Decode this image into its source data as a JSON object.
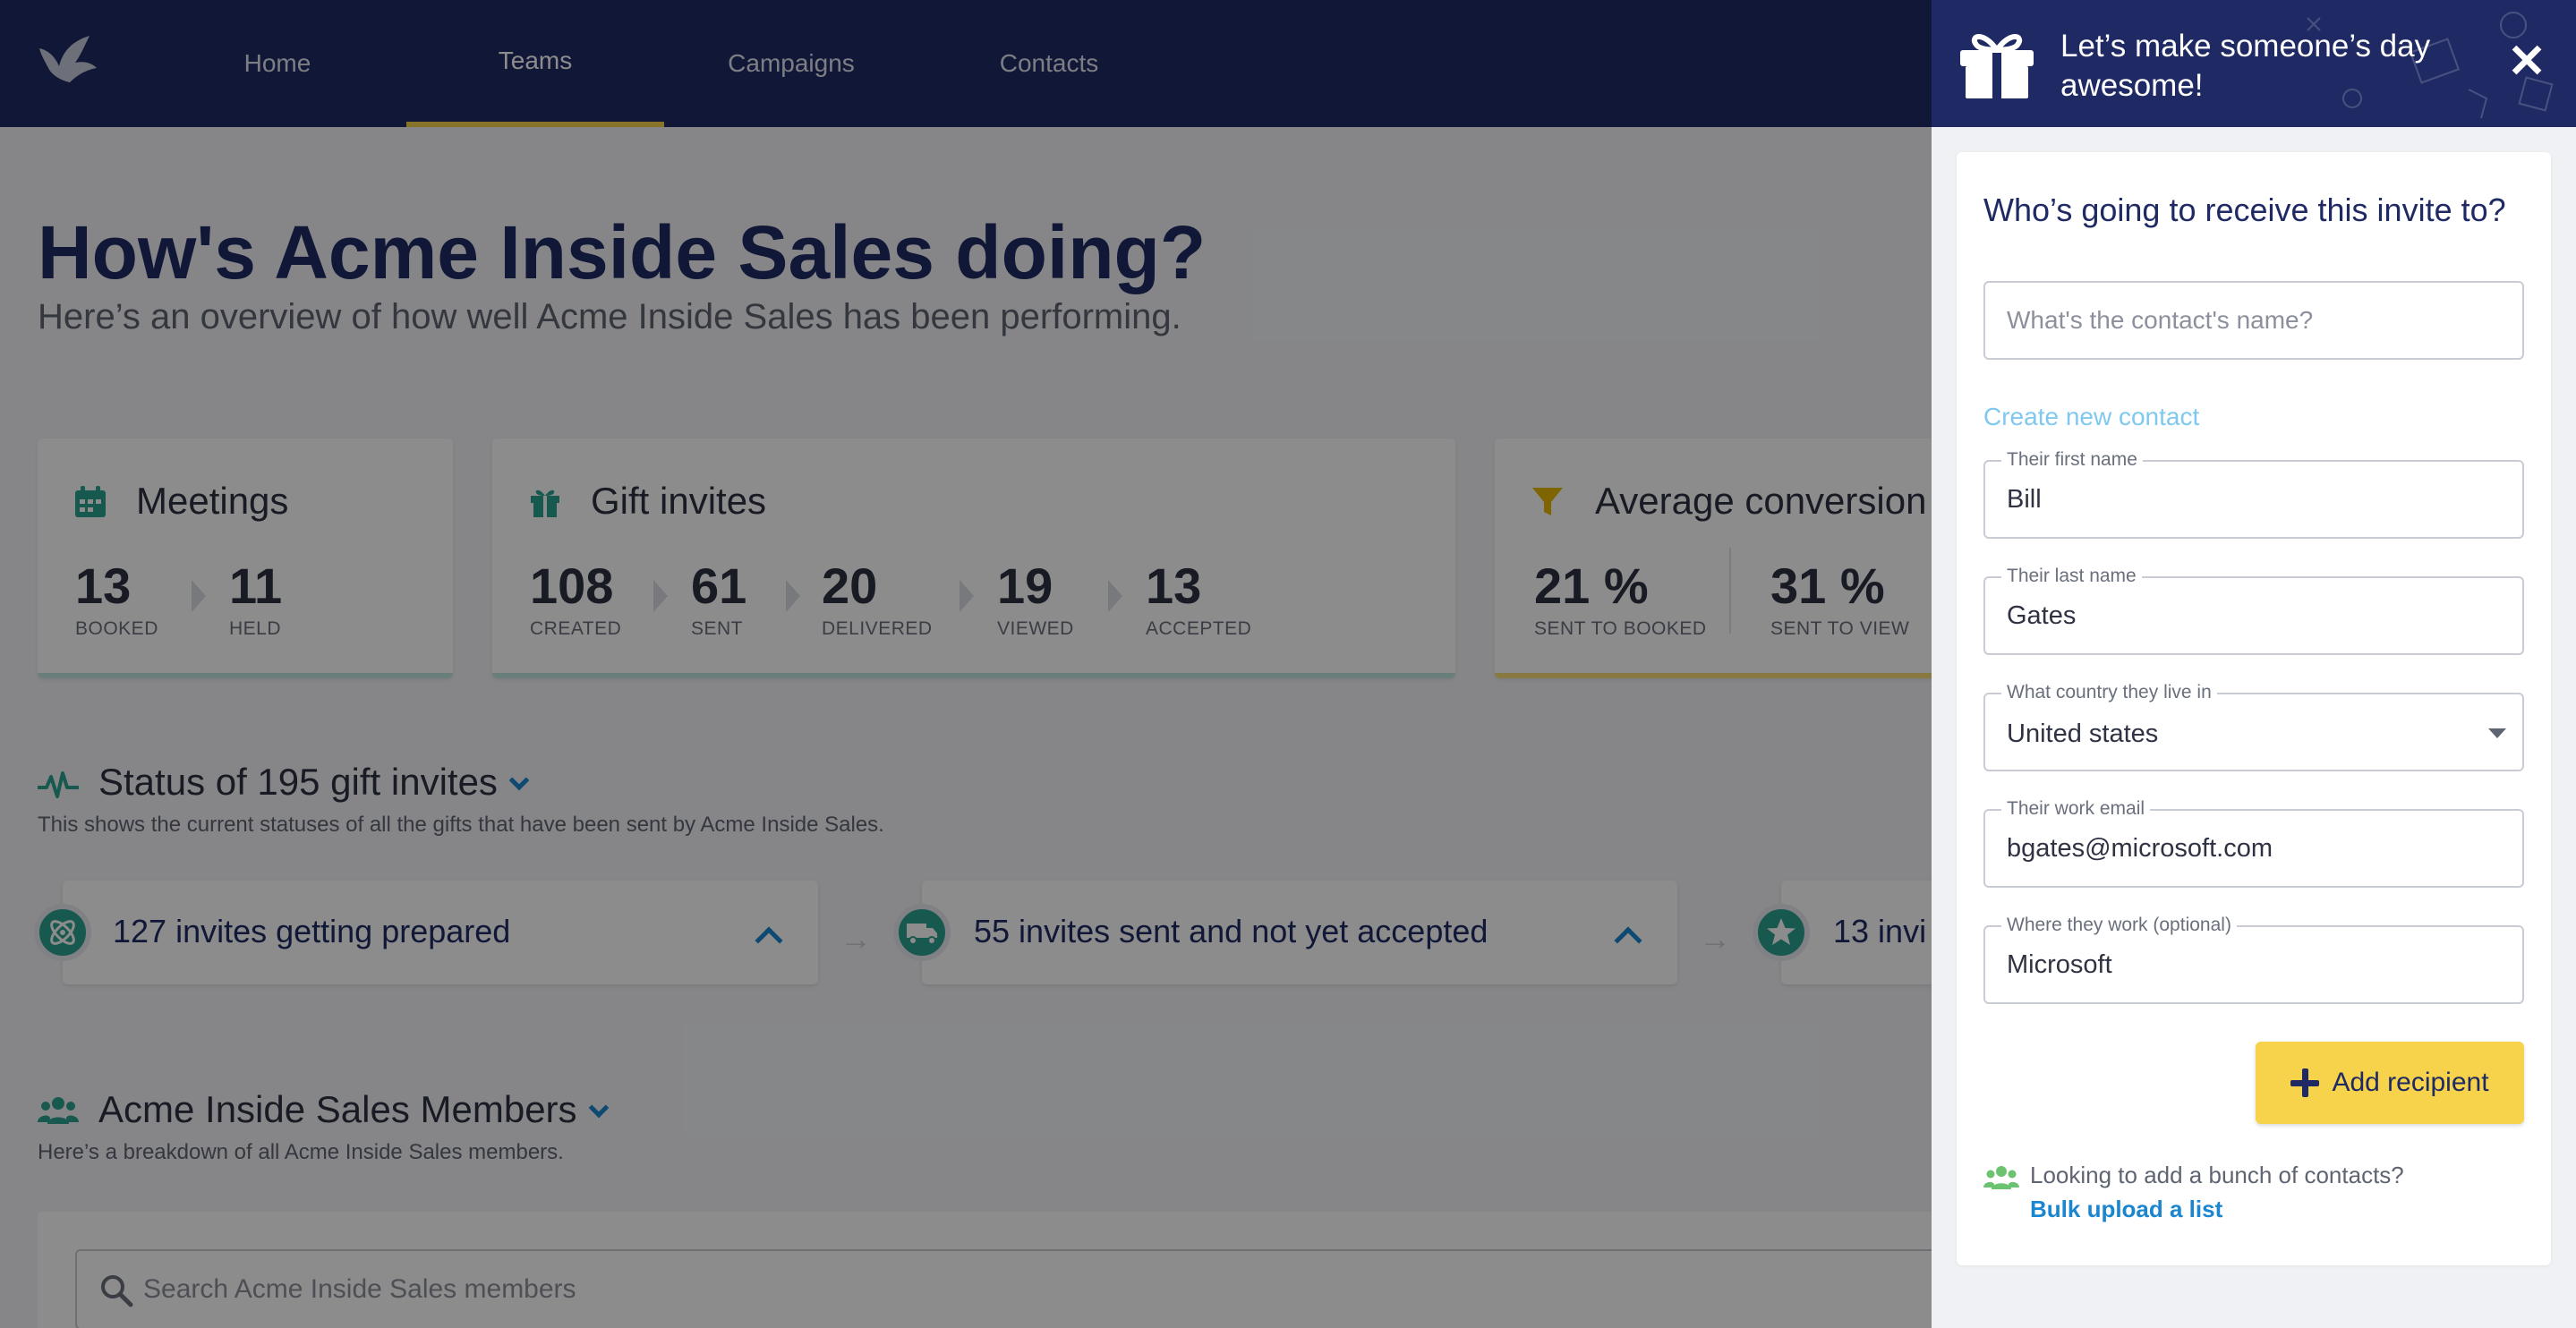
{
  "nav": {
    "items": [
      {
        "label": "Home"
      },
      {
        "label": "Teams",
        "active": true
      },
      {
        "label": "Campaigns"
      },
      {
        "label": "Contacts"
      }
    ]
  },
  "page": {
    "title": "How's Acme Inside Sales doing?",
    "subtitle": "Here’s an overview of how well Acme Inside Sales has been performing."
  },
  "cards": {
    "meetings": {
      "title": "Meetings",
      "icon": "calendar-icon",
      "stats": [
        {
          "value": "13",
          "label": "BOOKED"
        },
        {
          "value": "11",
          "label": "HELD"
        }
      ]
    },
    "gifts": {
      "title": "Gift invites",
      "icon": "gift-icon",
      "stats": [
        {
          "value": "108",
          "label": "CREATED"
        },
        {
          "value": "61",
          "label": "SENT"
        },
        {
          "value": "20",
          "label": "DELIVERED"
        },
        {
          "value": "19",
          "label": "VIEWED"
        },
        {
          "value": "13",
          "label": "ACCEPTED"
        }
      ]
    },
    "conversion": {
      "title": "Average conversion",
      "icon": "funnel-icon",
      "stats": [
        {
          "value": "21 %",
          "label": "SENT TO BOOKED"
        },
        {
          "value": "31 %",
          "label": "SENT TO VIEW"
        }
      ]
    }
  },
  "status": {
    "title": "Status of 195 gift invites",
    "description": "This shows the current statuses of all the gifts that have been sent by Acme Inside Sales.",
    "items": [
      {
        "label": "127 invites getting prepared",
        "icon": "atom-icon"
      },
      {
        "label": "55 invites sent and not yet accepted",
        "icon": "truck-icon"
      },
      {
        "label": "13 invi",
        "icon": "star-icon"
      }
    ]
  },
  "members": {
    "title": "Acme Inside Sales Members",
    "description": "Here’s a breakdown of all Acme Inside Sales members.",
    "search_placeholder": "Search Acme Inside Sales members"
  },
  "drawer": {
    "title": "Let’s make someone’s day awesome!",
    "close": "✕",
    "heading": "Who’s going to receive this invite to?",
    "contact_placeholder": "What's the contact's name?",
    "create_link": "Create new contact",
    "fields": {
      "first_name": {
        "label": "Their first name",
        "value": "Bill"
      },
      "last_name": {
        "label": "Their last name",
        "value": "Gates"
      },
      "country": {
        "label": "What country they live in",
        "value": "United states"
      },
      "email": {
        "label": "Their work email",
        "value": "bgates@microsoft.com"
      },
      "company": {
        "label": "Where they work (optional)",
        "value": "Microsoft"
      }
    },
    "add_button": "Add recipient",
    "bulk_text": "Looking to add a bunch of contacts?",
    "bulk_link": "Bulk upload a list"
  },
  "colors": {
    "navy": "#1f2a64",
    "yellow": "#f6d34a",
    "teal": "#2ba391",
    "link_blue": "#1a86d0",
    "light_link": "#7fc8ef",
    "green": "#6cc36f"
  }
}
